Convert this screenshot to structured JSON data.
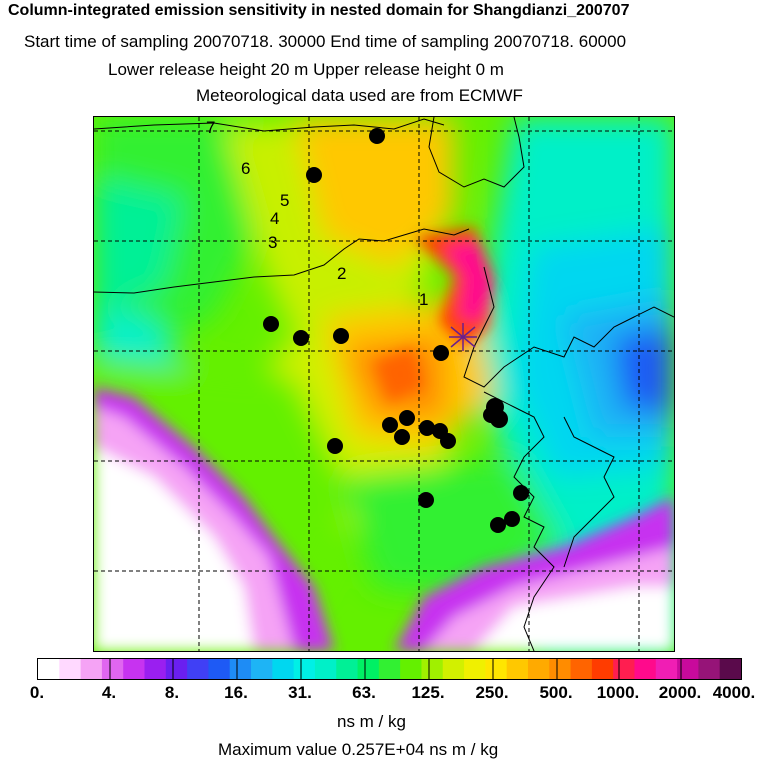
{
  "title": "Column-integrated emission sensitivity in nested domain for Shangdianzi_200707",
  "subtitle_lines": [
    "Start time of sampling 20070718. 30000     End time of sampling 20070718. 60000",
    "Lower release height   20 m          Upper release height    0 m",
    "Meteorological data used are from ECMWF"
  ],
  "map": {
    "receptor_marker": "star-icon",
    "track_labels": [
      "1",
      "2",
      "3",
      "4",
      "5",
      "6",
      "7"
    ],
    "station_marker": "filled-circle-icon",
    "gridlines": "dashed"
  },
  "legend": {
    "ticks": [
      "0.",
      "4.",
      "8.",
      "16.",
      "31.",
      "63.",
      "125.",
      "250.",
      "500.",
      "1000.",
      "2000.",
      "4000."
    ],
    "colors": [
      "#ffffff",
      "#ffd9ff",
      "#f5a3f5",
      "#e066f0",
      "#c733f0",
      "#9a1ff0",
      "#6a1ff0",
      "#4040f5",
      "#1e5af5",
      "#1e8cf5",
      "#1eb4f5",
      "#00d7f0",
      "#00f0e6",
      "#00f0c8",
      "#00f096",
      "#00f064",
      "#32f032",
      "#64f000",
      "#a0f000",
      "#d2f000",
      "#f0f000",
      "#ffe600",
      "#ffc800",
      "#ffaa00",
      "#ff8c00",
      "#ff6400",
      "#ff3c00",
      "#ff1e50",
      "#ff0a8c",
      "#f01eb4",
      "#c80a9c",
      "#961478",
      "#5a0a4b"
    ],
    "unit": "ns m / kg"
  },
  "max_value_text": "Maximum value  0.257E+04 ns m / kg"
}
